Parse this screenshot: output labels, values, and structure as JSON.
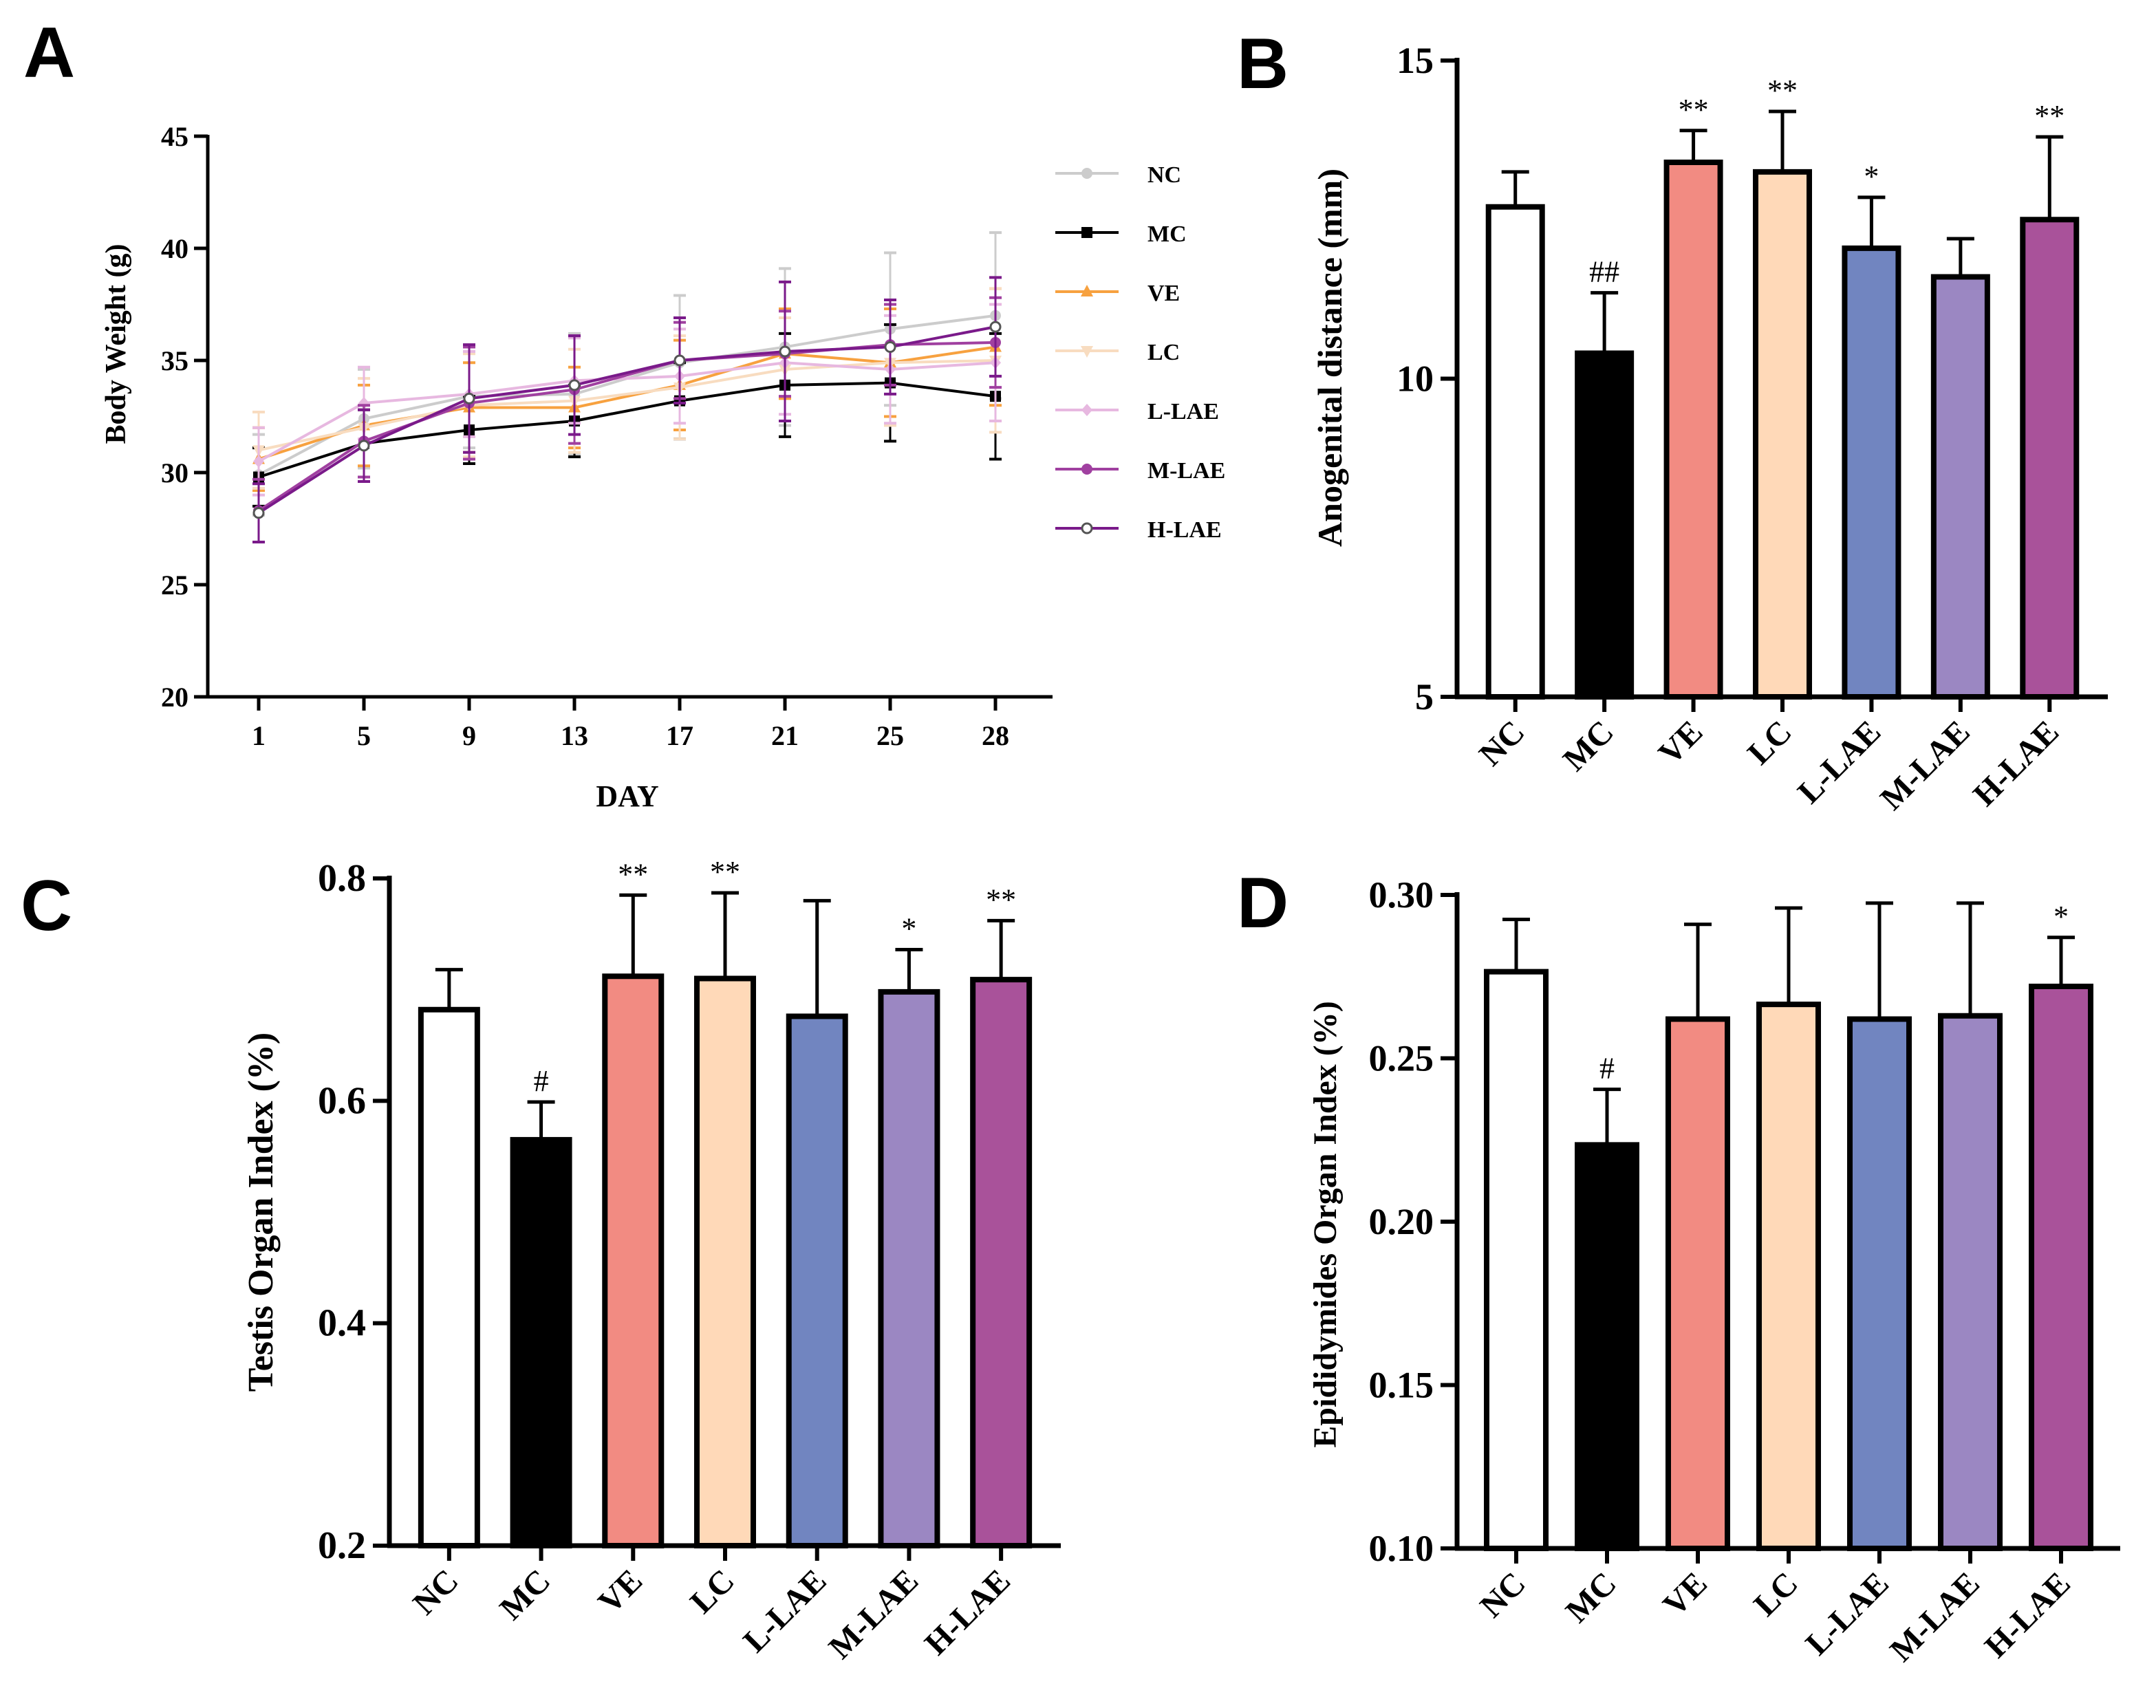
{
  "colors": {
    "NC": "#ffffff",
    "MC": "#000000",
    "VE": "#f28b82",
    "LC": "#ffd9b8",
    "L-LAE": "#7185c0",
    "M-LAE": "#9b87c2",
    "H-LAE": "#a9529a"
  },
  "line_colors": {
    "NC": "#cccccc",
    "MC": "#000000",
    "VE": "#f7a13f",
    "LC": "#f8dcc0",
    "L-LAE": "#e7b8e0",
    "M-LAE": "#a040a0",
    "H-LAE": "#7a1a8a"
  },
  "chart_data": [
    {
      "panel": "A",
      "type": "line",
      "title": "",
      "xlabel": "DAY",
      "ylabel": "Body Weight (g)",
      "x": [
        1,
        5,
        9,
        13,
        17,
        21,
        25,
        28
      ],
      "x_tick_labels": [
        "1",
        "5",
        "9",
        "13",
        "17",
        "21",
        "25",
        "28"
      ],
      "ylim": [
        20,
        45
      ],
      "y_ticks": [
        20,
        25,
        30,
        35,
        40,
        45
      ],
      "y_tick_labels": [
        "20",
        "25",
        "30",
        "35",
        "40",
        "45"
      ],
      "legend_position": "right",
      "series": [
        {
          "name": "NC",
          "marker": "circle",
          "values": [
            29.9,
            32.4,
            33.4,
            33.5,
            34.9,
            35.6,
            36.4,
            37.0
          ],
          "errors": [
            1.8,
            2.2,
            2.3,
            2.7,
            3.0,
            3.5,
            3.4,
            3.7
          ]
        },
        {
          "name": "MC",
          "marker": "square",
          "values": [
            29.8,
            31.3,
            31.9,
            32.3,
            33.2,
            33.9,
            34.0,
            33.4
          ],
          "errors": [
            1.3,
            1.5,
            1.5,
            1.6,
            1.7,
            2.3,
            2.6,
            2.8
          ]
        },
        {
          "name": "VE",
          "marker": "triangle-up",
          "values": [
            30.6,
            32.1,
            32.9,
            32.9,
            33.9,
            35.3,
            34.9,
            35.6
          ],
          "errors": [
            1.4,
            1.8,
            2.0,
            1.8,
            2.0,
            2.0,
            2.4,
            2.6
          ]
        },
        {
          "name": "LC",
          "marker": "triangle-down",
          "values": [
            31.0,
            32.0,
            33.0,
            33.2,
            33.8,
            34.6,
            34.9,
            35.0
          ],
          "errors": [
            1.7,
            2.2,
            2.3,
            2.3,
            2.3,
            2.3,
            2.8,
            3.2
          ]
        },
        {
          "name": "L-LAE",
          "marker": "diamond",
          "values": [
            30.5,
            33.1,
            33.5,
            34.1,
            34.3,
            34.9,
            34.6,
            34.9
          ],
          "errors": [
            1.5,
            1.6,
            1.9,
            1.9,
            2.1,
            2.3,
            2.4,
            2.6
          ]
        },
        {
          "name": "M-LAE",
          "marker": "circle",
          "values": [
            28.3,
            31.4,
            33.1,
            33.7,
            35.0,
            35.3,
            35.7,
            35.8
          ],
          "errors": [
            1.4,
            1.6,
            2.5,
            2.4,
            1.7,
            1.9,
            1.8,
            2.0
          ]
        },
        {
          "name": "H-LAE",
          "marker": "circle-open",
          "values": [
            28.2,
            31.2,
            33.3,
            33.9,
            35.0,
            35.4,
            35.6,
            36.5
          ],
          "errors": [
            1.3,
            1.6,
            2.4,
            2.2,
            1.9,
            3.1,
            2.1,
            2.2
          ]
        }
      ]
    },
    {
      "panel": "B",
      "type": "bar",
      "title": "",
      "xlabel": "",
      "ylabel": "Anogenital distance (mm)",
      "categories": [
        "NC",
        "MC",
        "VE",
        "LC",
        "L-LAE",
        "M-LAE",
        "H-LAE"
      ],
      "values": [
        12.7,
        10.4,
        13.4,
        13.25,
        12.05,
        11.6,
        12.5
      ],
      "errors": [
        0.55,
        0.95,
        0.5,
        0.95,
        0.8,
        0.6,
        1.3
      ],
      "significance": [
        "",
        "##",
        "**",
        "**",
        "*",
        "",
        "**"
      ],
      "ylim": [
        5,
        15
      ],
      "y_ticks": [
        5,
        10,
        15
      ],
      "y_tick_labels": [
        "5",
        "10",
        "15"
      ]
    },
    {
      "panel": "C",
      "type": "bar",
      "title": "",
      "xlabel": "",
      "ylabel": "Testis Organ Index (%)",
      "categories": [
        "NC",
        "MC",
        "VE",
        "LC",
        "L-LAE",
        "M-LAE",
        "H-LAE"
      ],
      "values": [
        0.682,
        0.565,
        0.712,
        0.71,
        0.676,
        0.698,
        0.709
      ],
      "errors": [
        0.036,
        0.034,
        0.073,
        0.077,
        0.104,
        0.038,
        0.053
      ],
      "significance": [
        "",
        "#",
        "**",
        "**",
        "",
        "*",
        "**"
      ],
      "ylim": [
        0.2,
        0.8
      ],
      "y_ticks": [
        0.2,
        0.4,
        0.6,
        0.8
      ],
      "y_tick_labels": [
        "0.2",
        "0.4",
        "0.6",
        "0.8"
      ]
    },
    {
      "panel": "D",
      "type": "bar",
      "title": "",
      "xlabel": "",
      "ylabel": "Epididymides Organ Index (%)",
      "categories": [
        "NC",
        "MC",
        "VE",
        "LC",
        "L-LAE",
        "M-LAE",
        "H-LAE"
      ],
      "values": [
        0.2765,
        0.2235,
        0.262,
        0.2665,
        0.262,
        0.263,
        0.272
      ],
      "errors": [
        0.016,
        0.017,
        0.029,
        0.0295,
        0.0355,
        0.0345,
        0.015
      ],
      "significance": [
        "",
        "#",
        "",
        "",
        "",
        "",
        "*"
      ],
      "ylim": [
        0.1,
        0.3
      ],
      "y_ticks": [
        0.1,
        0.15,
        0.2,
        0.25,
        0.3
      ],
      "y_tick_labels": [
        "0.10",
        "0.15",
        "0.20",
        "0.25",
        "0.30"
      ]
    }
  ]
}
